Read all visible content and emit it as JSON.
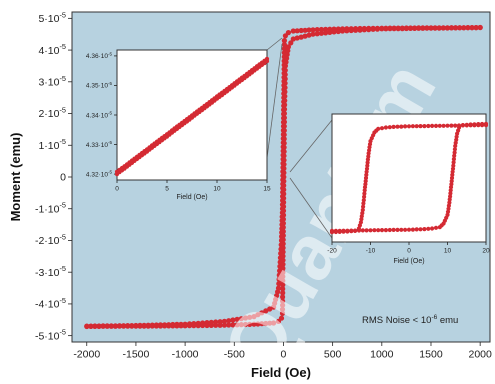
{
  "colors": {
    "plot_bg": "#b7d2e0",
    "inset_bg": "#ffffff",
    "marker": "#d42a33",
    "line": "#5c5c5c",
    "watermark": "#ffffff"
  },
  "watermark_text": "Quantum",
  "chart_data": [
    {
      "type": "scatter",
      "title": "",
      "xlabel": "Field (Oe)",
      "ylabel": "Moment (emu)",
      "xlim": [
        -2150,
        2100
      ],
      "ylim": [
        -5.2e-05,
        5.2e-05
      ],
      "x_ticks": [
        -2000,
        -1500,
        -1000,
        -500,
        0,
        500,
        1000,
        1500,
        2000
      ],
      "x_tick_labels": [
        "-2000",
        "-1500",
        "-1000",
        "-500",
        "0",
        "500",
        "1000",
        "1500",
        "2000"
      ],
      "y_ticks": [
        -5e-05,
        -4e-05,
        -3e-05,
        -2e-05,
        -1e-05,
        0,
        1e-05,
        2e-05,
        3e-05,
        4e-05,
        5e-05
      ],
      "y_tick_labels": [
        "-5·10",
        "-4·10",
        "-3·10",
        "-2·10",
        "-1·10",
        "0",
        "1·10",
        "2·10",
        "3·10",
        "4·10",
        "5·10"
      ],
      "y_tick_exponent": "-5",
      "annotation": {
        "text": "RMS Noise < 10",
        "sup": "-6",
        "unit": " emu"
      },
      "series": [
        {
          "branch": "upper",
          "x": [
            -2000,
            -1500,
            -1000,
            -600,
            -300,
            -100,
            -50,
            -20,
            -10,
            0,
            10,
            20,
            50,
            100,
            300,
            600,
            1000,
            1500,
            2000
          ],
          "y": [
            -4.7e-05,
            -4.68e-05,
            -4.64e-05,
            -4.55e-05,
            -4.4e-05,
            -4.1e-05,
            -3.5e-05,
            -2e-05,
            -1e-05,
            1.6e-05,
            4.3e-05,
            4.45e-05,
            4.55e-05,
            4.6e-05,
            4.64e-05,
            4.67e-05,
            4.69e-05,
            4.7e-05,
            4.71e-05
          ]
        },
        {
          "branch": "lower",
          "x": [
            2000,
            1500,
            1000,
            600,
            300,
            100,
            50,
            20,
            10,
            0,
            -10,
            -20,
            -50,
            -100,
            -300,
            -600,
            -1000,
            -1500,
            -2000
          ],
          "y": [
            4.71e-05,
            4.69e-05,
            4.67e-05,
            4.6e-05,
            4.5e-05,
            4.35e-05,
            4.1e-05,
            3.5e-05,
            2e-05,
            -1.2e-05,
            -4.3e-05,
            -4.45e-05,
            -4.55e-05,
            -4.6e-05,
            -4.64e-05,
            -4.67e-05,
            -4.69e-05,
            -4.7e-05,
            -4.71e-05
          ]
        }
      ]
    },
    {
      "type": "scatter",
      "xlabel": "Field (Oe)",
      "ylabel": "",
      "xlim": [
        0,
        15
      ],
      "ylim": [
        4.318e-05,
        4.362e-05
      ],
      "x_ticks": [
        0,
        5,
        10,
        15
      ],
      "x_tick_labels": [
        "0",
        "5",
        "10",
        "15"
      ],
      "y_ticks": [
        4.32e-05,
        4.33e-05,
        4.34e-05,
        4.35e-05,
        4.36e-05
      ],
      "y_tick_labels": [
        "4.32·10",
        "4.33·10",
        "4.34·10",
        "4.35·10",
        "4.36·10"
      ],
      "y_tick_exponent": "-5",
      "series": [
        {
          "x": [
            0,
            1,
            2,
            3,
            4,
            5,
            6,
            7,
            8,
            9,
            10,
            11,
            12,
            13,
            14,
            15
          ],
          "y": [
            4.32e-05,
            4.3225e-05,
            4.3251e-05,
            4.3276e-05,
            4.3302e-05,
            4.3327e-05,
            4.3353e-05,
            4.3378e-05,
            4.3404e-05,
            4.3429e-05,
            4.3455e-05,
            4.348e-05,
            4.3506e-05,
            4.3531e-05,
            4.3557e-05,
            4.3582e-05
          ]
        },
        {
          "x": [
            0,
            1,
            2,
            3,
            4,
            5,
            6,
            7,
            8,
            9,
            10,
            11,
            12,
            13,
            14,
            15
          ],
          "y": [
            4.3208e-05,
            4.3233e-05,
            4.3259e-05,
            4.3284e-05,
            4.331e-05,
            4.3335e-05,
            4.3361e-05,
            4.3386e-05,
            4.3412e-05,
            4.3437e-05,
            4.3463e-05,
            4.3488e-05,
            4.3514e-05,
            4.3539e-05,
            4.3565e-05,
            4.359e-05
          ]
        }
      ]
    },
    {
      "type": "scatter",
      "xlabel": "Field (Oe)",
      "ylabel": "",
      "xlim": [
        -20,
        20
      ],
      "ylim": [
        -5.2e-05,
        5.2e-05
      ],
      "x_ticks": [
        -20,
        -10,
        0,
        10,
        20
      ],
      "x_tick_labels": [
        "-20",
        "-10",
        "0",
        "10",
        "20"
      ],
      "series": [
        {
          "branch": "up",
          "x": [
            -20,
            -18,
            -16,
            -14,
            -12,
            -10,
            -8,
            -6,
            -4,
            -2,
            0,
            2,
            4,
            6,
            8,
            9,
            10,
            10.5,
            11,
            11.5,
            12,
            12.5,
            13,
            14,
            16,
            18,
            20
          ],
          "y": [
            -4.3e-05,
            -4.29e-05,
            -4.28e-05,
            -4.27e-05,
            -4.26e-05,
            -4.25e-05,
            -4.24e-05,
            -4.23e-05,
            -4.22e-05,
            -4.21e-05,
            -4.2e-05,
            -4.18e-05,
            -4.15e-05,
            -4.1e-05,
            -4e-05,
            -3.7e-05,
            -3e-05,
            -2e-05,
            -5e-06,
            1e-05,
            2.6e-05,
            3.6e-05,
            4.1e-05,
            4.3e-05,
            4.35e-05,
            4.38e-05,
            4.4e-05
          ]
        },
        {
          "branch": "down",
          "x": [
            20,
            18,
            16,
            14,
            12,
            10,
            8,
            6,
            4,
            2,
            0,
            -2,
            -4,
            -6,
            -8,
            -9,
            -10,
            -10.5,
            -11,
            -11.5,
            -12,
            -12.5,
            -13,
            -14,
            -16,
            -18,
            -20
          ],
          "y": [
            4.3e-05,
            4.29e-05,
            4.28e-05,
            4.27e-05,
            4.26e-05,
            4.25e-05,
            4.24e-05,
            4.23e-05,
            4.22e-05,
            4.21e-05,
            4.2e-05,
            4.18e-05,
            4.15e-05,
            4.1e-05,
            4e-05,
            3.7e-05,
            3e-05,
            2e-05,
            5e-06,
            -1e-05,
            -2.6e-05,
            -3.6e-05,
            -4.1e-05,
            -4.3e-05,
            -4.35e-05,
            -4.38e-05,
            -4.4e-05
          ]
        }
      ]
    }
  ]
}
